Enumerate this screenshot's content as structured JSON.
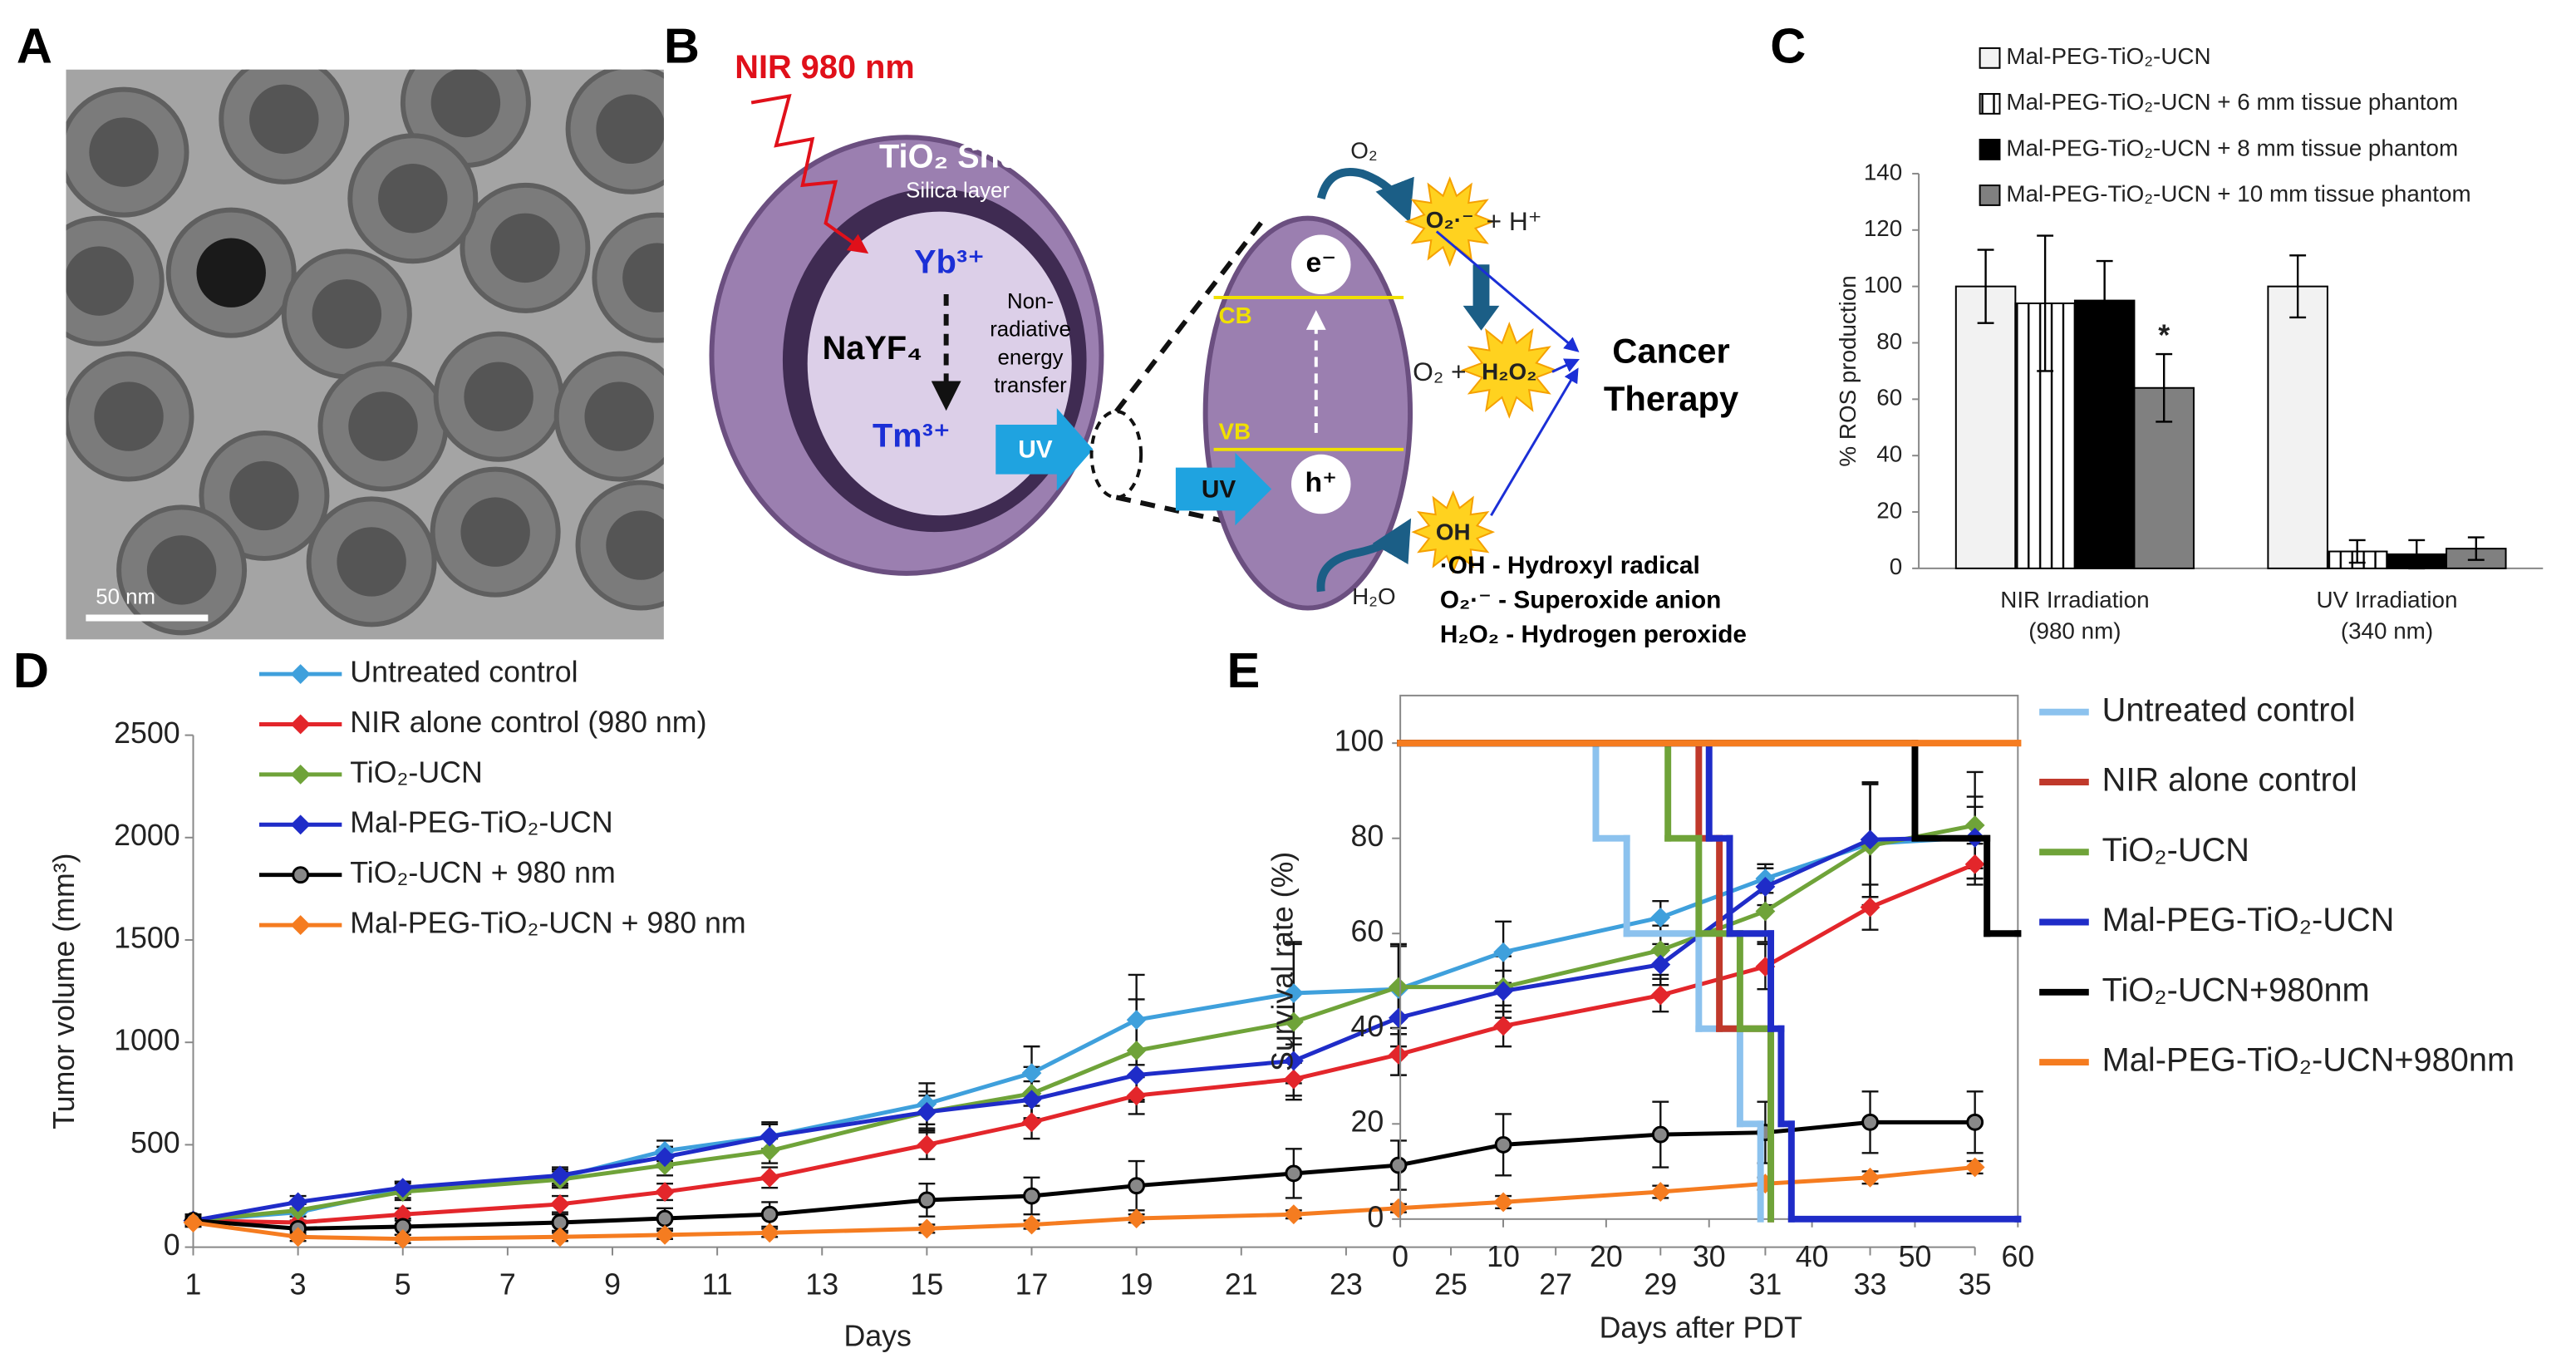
{
  "panel_labels": [
    "A",
    "B",
    "C",
    "D",
    "E"
  ],
  "image_a": {
    "scale_bar": "50 nm"
  },
  "diagram": {
    "excitation": "NIR 980 nm",
    "shell": "TiO₂ Shell",
    "silica": "Silica layer",
    "yb": "Yb³⁺",
    "core": "NaYF₄",
    "energy_transfer": [
      "Non-",
      "radiative",
      "energy",
      "transfer"
    ],
    "tm": "Tm³⁺",
    "uv_1": "UV",
    "uv_2": "UV",
    "electron": "e⁻",
    "cb": "CB",
    "vb": "VB",
    "hole": "h⁺",
    "o2": "O₂",
    "superoxide": "O₂·⁻",
    "plus_h": "+ H⁺",
    "o2_plus": "O₂ +",
    "peroxide": "H₂O₂",
    "hydroxyl": "OH",
    "water": "H₂O",
    "outcome": [
      "Cancer",
      "Therapy"
    ],
    "key": [
      "·OH - Hydroxyl radical",
      "O₂·⁻ - Superoxide anion",
      "H₂O₂ - Hydrogen peroxide"
    ]
  },
  "chart_data": [
    {
      "type": "bar",
      "ylabel": "% ROS production",
      "categories": [
        "NIR Irradiation",
        "UV Irradiation"
      ],
      "category_sublabels": [
        "(980 nm)",
        "(340 nm)"
      ],
      "ylim": [
        0,
        140
      ],
      "yticks": [
        0,
        20,
        40,
        60,
        80,
        100,
        120,
        140
      ],
      "annotation": "*",
      "series": [
        {
          "name": "Mal-PEG-TiO₂-UCN",
          "color": "#f2f2f2",
          "values": [
            100,
            100
          ],
          "errors": [
            13,
            11
          ]
        },
        {
          "name": "Mal-PEG-TiO₂-UCN + 6 mm tissue phantom",
          "color": "#ffffff",
          "hatch": "vertical",
          "values": [
            94,
            6
          ],
          "errors": [
            24,
            4
          ]
        },
        {
          "name": "Mal-PEG-TiO₂-UCN + 8 mm tissue phantom",
          "color": "#000000",
          "values": [
            95,
            5
          ],
          "errors": [
            14,
            5
          ]
        },
        {
          "name": "Mal-PEG-TiO₂-UCN + 10 mm tissue phantom",
          "color": "#808080",
          "values": [
            64,
            7
          ],
          "errors": [
            12,
            4
          ]
        }
      ]
    },
    {
      "type": "line",
      "xlabel": "Days",
      "ylabel": "Tumor volume (mm³)",
      "x": [
        1,
        3,
        5,
        8,
        10,
        12,
        15,
        17,
        19,
        22,
        24,
        26,
        29,
        31,
        33,
        35
      ],
      "xlim": [
        1,
        35
      ],
      "xticks": [
        1,
        3,
        5,
        7,
        9,
        11,
        13,
        15,
        17,
        19,
        21,
        23,
        25,
        27,
        29,
        31,
        33,
        35
      ],
      "ylim": [
        0,
        2500
      ],
      "yticks": [
        0,
        500,
        1000,
        1500,
        2000,
        2500
      ],
      "series": [
        {
          "name": "Untreated control",
          "color": "#3fa0dc",
          "marker": "diamond",
          "values": [
            130,
            170,
            280,
            340,
            470,
            540,
            700,
            850,
            1110,
            1240,
            1260,
            1440,
            1610,
            1800,
            1970,
            2000
          ],
          "errors": [
            30,
            40,
            40,
            40,
            50,
            70,
            100,
            130,
            220,
            250,
            220,
            150,
            80,
            70,
            300,
            200
          ]
        },
        {
          "name": "NIR alone control (980 nm)",
          "color": "#e3262b",
          "marker": "diamond",
          "values": [
            130,
            120,
            160,
            210,
            270,
            340,
            500,
            610,
            740,
            820,
            940,
            1080,
            1230,
            1370,
            1660,
            1870
          ],
          "errors": [
            20,
            30,
            30,
            40,
            40,
            50,
            70,
            80,
            90,
            80,
            100,
            100,
            80,
            110,
            110,
            100
          ]
        },
        {
          "name": "TiO₂-UCN",
          "color": "#6fa339",
          "marker": "diamond",
          "values": [
            130,
            180,
            270,
            330,
            400,
            470,
            660,
            750,
            960,
            1100,
            1270,
            1270,
            1450,
            1640,
            1960,
            2060
          ],
          "errors": [
            20,
            30,
            40,
            40,
            50,
            60,
            100,
            130,
            250,
            380,
            200,
            150,
            120,
            150,
            300,
            260
          ]
        },
        {
          "name": "Mal-PEG-TiO₂-UCN",
          "color": "#1f2cc8",
          "marker": "diamond",
          "values": [
            130,
            220,
            290,
            350,
            440,
            540,
            660,
            720,
            840,
            910,
            1120,
            1250,
            1380,
            1760,
            1990,
            2000
          ],
          "errors": [
            20,
            30,
            30,
            40,
            50,
            60,
            80,
            90,
            120,
            110,
            140,
            100,
            100,
            90,
            280,
            150
          ]
        },
        {
          "name": "TiO₂-UCN + 980 nm",
          "color": "#000000",
          "marker": "circle",
          "values": [
            130,
            90,
            100,
            120,
            140,
            160,
            230,
            250,
            300,
            360,
            400,
            500,
            550,
            560,
            610,
            610
          ],
          "errors": [
            30,
            30,
            40,
            40,
            50,
            60,
            80,
            90,
            120,
            120,
            120,
            150,
            160,
            150,
            150,
            150
          ]
        },
        {
          "name": "Mal-PEG-TiO₂-UCN + 980 nm",
          "color": "#f57c20",
          "marker": "diamond",
          "values": [
            120,
            50,
            40,
            50,
            60,
            70,
            90,
            110,
            140,
            160,
            190,
            220,
            270,
            310,
            340,
            390
          ],
          "errors": [
            20,
            20,
            20,
            20,
            20,
            20,
            20,
            20,
            20,
            20,
            20,
            30,
            30,
            30,
            30,
            30
          ]
        }
      ]
    },
    {
      "type": "step",
      "xlabel": "Days after PDT",
      "ylabel": "Survival rate (%)",
      "xlim": [
        0,
        60
      ],
      "xticks": [
        0,
        10,
        20,
        30,
        40,
        50,
        60
      ],
      "ylim": [
        0,
        110
      ],
      "yticks": [
        0,
        20,
        40,
        60,
        80,
        100
      ],
      "series": [
        {
          "name": "Untreated control",
          "color": "#8cc2ee",
          "x": [
            0,
            19,
            22,
            29,
            33,
            35
          ],
          "values": [
            100,
            80,
            60,
            40,
            20,
            0
          ]
        },
        {
          "name": "NIR alone control",
          "color": "#c0392b",
          "x": [
            0,
            29,
            31,
            36
          ],
          "values": [
            100,
            80,
            40,
            0
          ]
        },
        {
          "name": "TiO₂-UCN",
          "color": "#6fa339",
          "x": [
            0,
            26,
            29,
            33,
            36
          ],
          "values": [
            100,
            80,
            60,
            40,
            0
          ]
        },
        {
          "name": "Mal-PEG-TiO₂-UCN",
          "color": "#1f2cc8",
          "x": [
            0,
            30,
            32,
            36,
            37,
            38,
            60
          ],
          "values": [
            100,
            80,
            60,
            40,
            20,
            0,
            0
          ]
        },
        {
          "name": "TiO₂-UCN+980nm",
          "color": "#000000",
          "x": [
            0,
            50,
            57,
            60
          ],
          "values": [
            100,
            80,
            60,
            60
          ]
        },
        {
          "name": "Mal-PEG-TiO₂-UCN+980nm",
          "color": "#f57c20",
          "x": [
            0,
            60
          ],
          "values": [
            100,
            100
          ]
        }
      ]
    }
  ]
}
